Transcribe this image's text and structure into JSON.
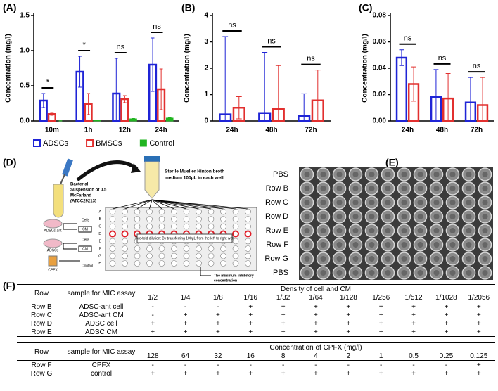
{
  "chart_data": [
    {
      "type": "bar",
      "label": "(A)",
      "y_label": "Concentration (mg/l)",
      "categories": [
        "10m",
        "1h",
        "12h",
        "24h"
      ],
      "series": [
        {
          "name": "ADSCs",
          "color": "#1f24d6",
          "style": "outline",
          "values": [
            0.29,
            0.7,
            0.39,
            0.8
          ],
          "errors": [
            0.1,
            0.22,
            0.5,
            0.38
          ]
        },
        {
          "name": "BMSCs",
          "color": "#e2302f",
          "style": "outline",
          "values": [
            0.1,
            0.24,
            0.31,
            0.45
          ],
          "errors": [
            0.02,
            0.15,
            0.05,
            0.29
          ]
        },
        {
          "name": "Control",
          "color": "#21b521",
          "style": "filled",
          "values": [
            0.0,
            0.01,
            0.03,
            0.04
          ],
          "errors": [
            0.003,
            0.004,
            0.005,
            0.006
          ]
        }
      ],
      "significance": [
        "*",
        "*",
        "ns",
        "ns"
      ],
      "ylim": [
        0,
        1.5
      ],
      "yticks": [
        {
          "value": 0,
          "label": "0.0"
        },
        0.5,
        {
          "value": 1,
          "label": "1.0"
        },
        1.5
      ],
      "legend": "bottom"
    },
    {
      "type": "bar",
      "label": "(B)",
      "y_label": "Concentration (mg/l)",
      "categories": [
        "24h",
        "48h",
        "72h"
      ],
      "series": [
        {
          "color": "#1f24d6",
          "style": "outline",
          "values": [
            0.25,
            0.3,
            0.18
          ],
          "errors": [
            2.95,
            2.3,
            0.85
          ]
        },
        {
          "color": "#e2302f",
          "style": "outline",
          "values": [
            0.5,
            0.45,
            0.78
          ],
          "errors": [
            0.42,
            1.65,
            1.15
          ]
        }
      ],
      "significance": [
        "ns",
        "ns",
        "ns"
      ],
      "ylim": [
        0,
        4
      ],
      "yticks": [
        0,
        1,
        2,
        3,
        4
      ]
    },
    {
      "type": "bar",
      "label": "(C)",
      "y_label": "Concentration (mg/l)",
      "categories": [
        "24h",
        "48h",
        "72h"
      ],
      "series": [
        {
          "color": "#1f24d6",
          "style": "outline",
          "values": [
            0.048,
            0.018,
            0.014
          ],
          "errors": [
            0.006,
            0.021,
            0.019
          ]
        },
        {
          "color": "#e2302f",
          "style": "outline",
          "values": [
            0.028,
            0.017,
            0.012
          ],
          "errors": [
            0.013,
            0.019,
            0.021
          ]
        }
      ],
      "significance": [
        "ns",
        "ns",
        "ns"
      ],
      "ylim": [
        0,
        0.08
      ],
      "yticks": [
        {
          "value": 0,
          "label": "0.00"
        },
        {
          "value": 0.02,
          "label": "0.02"
        },
        {
          "value": 0.04,
          "label": "0.04"
        },
        {
          "value": 0.06,
          "label": "0.06"
        },
        {
          "value": 0.08,
          "label": "0.08"
        }
      ]
    }
  ],
  "panel_d": {
    "label": "(D)",
    "bacteria": [
      "Bacterial",
      "Suspension of 0.5",
      "McFarland",
      "(ATCC29213)"
    ],
    "broth": [
      "Sterile Mueller Hinton broth",
      "medium 100μL in each well"
    ],
    "rows": [
      "A",
      "B",
      "C",
      "D",
      "E",
      "F",
      "G",
      "H"
    ],
    "cells_1": "Cells",
    "cm_1": "CM",
    "source_1": "ADSCs-ant",
    "cells_2": "Cells",
    "cm_2": "CM",
    "source_2": "ADSCs",
    "antibiotic": "CPFX",
    "control": "Control",
    "dilution": "Two-fold dilution: By transferring 100μL from the left to right well",
    "mic": [
      "The minimum inhibitory",
      "concentration"
    ]
  },
  "panel_e": {
    "label": "(E)",
    "row_labels": [
      "PBS",
      "Row B",
      "Row C",
      "Row D",
      "Row E",
      "Row F",
      "Row G",
      "PBS"
    ]
  },
  "panel_f": {
    "label": "(F)",
    "tables": [
      {
        "row_header": "Row",
        "sample_header": "sample for MIC assay",
        "group_header": "Density of cell and CM",
        "columns": [
          "1/2",
          "1/4",
          "1/8",
          "1/16",
          "1/32",
          "1/64",
          "1/128",
          "1/256",
          "1/512",
          "1/1028",
          "1/2056"
        ],
        "rows": [
          {
            "row": "Row B",
            "sample": "ADSC-ant cell",
            "cells": [
              "-",
              "-",
              "-",
              "+",
              "+",
              "+",
              "+",
              "+",
              "+",
              "+",
              "+"
            ]
          },
          {
            "row": "Row C",
            "sample": "ADSC-ant CM",
            "cells": [
              "-",
              "+",
              "+",
              "+",
              "+",
              "+",
              "+",
              "+",
              "+",
              "+",
              "+"
            ]
          },
          {
            "row": "Row D",
            "sample": "ADSC cell",
            "cells": [
              "+",
              "+",
              "+",
              "+",
              "+",
              "+",
              "+",
              "+",
              "+",
              "+",
              "+"
            ]
          },
          {
            "row": "Row E",
            "sample": "ADSC CM",
            "cells": [
              "+",
              "+",
              "+",
              "+",
              "+",
              "+",
              "+",
              "+",
              "+",
              "+",
              "+"
            ]
          }
        ]
      },
      {
        "row_header": "Row",
        "sample_header": "sample for MIC assay",
        "group_header": "Concentration of CPFX (mg/l)",
        "columns": [
          "128",
          "64",
          "32",
          "16",
          "8",
          "4",
          "2",
          "1",
          "0.5",
          "0.25",
          "0.125"
        ],
        "rows": [
          {
            "row": "Row F",
            "sample": "CPFX",
            "cells": [
              "-",
              "-",
              "-",
              "-",
              "-",
              "-",
              "-",
              "-",
              "-",
              "-",
              "+"
            ]
          },
          {
            "row": "Row G",
            "sample": "control",
            "cells": [
              "+",
              "+",
              "+",
              "+",
              "+",
              "+",
              "+",
              "+",
              "+",
              "+",
              "+"
            ]
          }
        ]
      }
    ]
  }
}
